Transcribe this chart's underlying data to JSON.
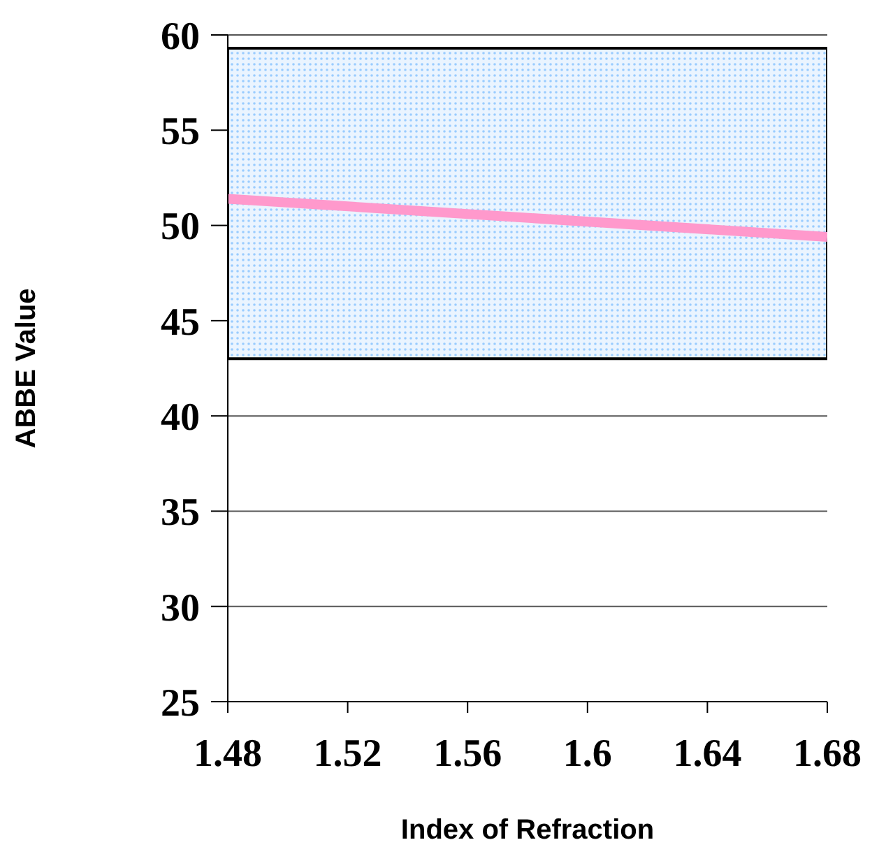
{
  "chart_data": {
    "type": "line",
    "xlabel": "Index of Refraction",
    "ylabel": "ABBE Value",
    "x": [
      1.48,
      1.68
    ],
    "series": [
      {
        "color": "#ff99cc",
        "values": [
          51.4,
          49.4
        ]
      }
    ],
    "xlim": [
      1.48,
      1.68
    ],
    "xticks": [
      1.48,
      1.52,
      1.56,
      1.6,
      1.64,
      1.68
    ],
    "ylim": [
      25,
      60
    ],
    "yticks": [
      25,
      30,
      35,
      40,
      45,
      50,
      55,
      60
    ],
    "bands": [
      {
        "axis": "y",
        "from": 43,
        "to": 59.3
      }
    ],
    "grid": "y",
    "marker": "none",
    "line_style": "solid"
  }
}
